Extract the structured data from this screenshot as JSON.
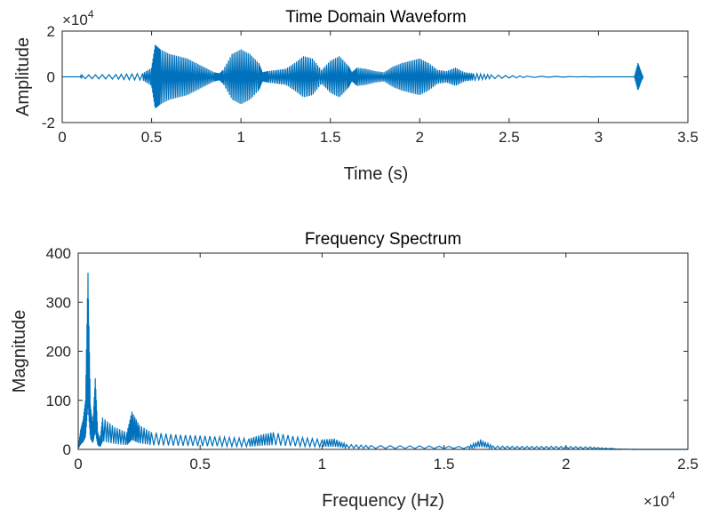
{
  "chart_data": [
    {
      "type": "line",
      "title": "Time Domain Waveform",
      "xlabel": "Time (s)",
      "ylabel": "Amplitude",
      "xlim": [
        0,
        3.5
      ],
      "ylim": [
        -20000,
        20000
      ],
      "xticks": [
        0,
        0.5,
        1,
        1.5,
        2,
        2.5,
        3,
        3.5
      ],
      "xtick_labels": [
        "0",
        "0.5",
        "1",
        "1.5",
        "2",
        "2.5",
        "3",
        "3.5"
      ],
      "yticks": [
        -20000,
        0,
        20000
      ],
      "ytick_labels": [
        "-2",
        "0",
        "2"
      ],
      "y_multiplier": "×10",
      "y_multiplier_exp": "4",
      "line_color": "#0072bd",
      "grid": false,
      "series": [
        {
          "x": [
            0,
            0.1,
            0.11,
            0.3,
            0.45,
            0.5,
            0.52,
            0.55,
            0.6,
            0.65,
            0.7,
            0.75,
            0.8,
            0.85,
            0.88,
            0.9,
            0.95,
            1.0,
            1.05,
            1.1,
            1.12,
            1.15,
            1.2,
            1.25,
            1.3,
            1.35,
            1.4,
            1.45,
            1.5,
            1.55,
            1.6,
            1.62,
            1.65,
            1.7,
            1.75,
            1.8,
            1.85,
            1.9,
            1.95,
            2.0,
            2.05,
            2.1,
            2.15,
            2.2,
            2.25,
            2.3,
            2.4,
            2.6,
            3.0,
            3.2,
            3.22,
            3.23,
            3.25
          ],
          "y": [
            0,
            0,
            800,
            1000,
            1500,
            4000,
            14000,
            12000,
            10000,
            9000,
            8000,
            6000,
            4000,
            2000,
            1500,
            3000,
            10000,
            12000,
            10000,
            6000,
            2000,
            2500,
            3000,
            3500,
            6000,
            9000,
            8000,
            3000,
            7000,
            9000,
            5000,
            2000,
            4000,
            3500,
            2500,
            2000,
            4500,
            6000,
            7000,
            8000,
            6000,
            3000,
            2500,
            4000,
            2000,
            1500,
            800,
            300,
            0,
            0,
            6000,
            4000,
            0
          ]
        }
      ]
    },
    {
      "type": "line",
      "title": "Frequency Spectrum",
      "xlabel": "Frequency (Hz)",
      "ylabel": "Magnitude",
      "xlim": [
        0,
        25000
      ],
      "ylim": [
        0,
        400
      ],
      "xticks": [
        0,
        5000,
        10000,
        15000,
        20000,
        25000
      ],
      "xtick_labels": [
        "0",
        "0.5",
        "1",
        "1.5",
        "2",
        "2.5"
      ],
      "yticks": [
        0,
        100,
        200,
        300,
        400
      ],
      "ytick_labels": [
        "0",
        "100",
        "200",
        "300",
        "400"
      ],
      "x_multiplier": "×10",
      "x_multiplier_exp": "4",
      "line_color": "#0072bd",
      "grid": false,
      "series": [
        {
          "x": [
            0,
            100,
            200,
            300,
            400,
            500,
            600,
            700,
            800,
            900,
            1000,
            1500,
            2000,
            2200,
            2500,
            3000,
            4000,
            5000,
            6000,
            7000,
            7500,
            8000,
            9000,
            10000,
            10500,
            11000,
            12000,
            14000,
            16000,
            16500,
            17000,
            18000,
            19000,
            20000,
            21000,
            21800,
            22000,
            23000,
            25000
          ],
          "y": [
            5,
            40,
            60,
            100,
            360,
            90,
            50,
            145,
            35,
            20,
            65,
            45,
            35,
            77,
            50,
            35,
            30,
            28,
            25,
            22,
            30,
            35,
            25,
            20,
            22,
            10,
            8,
            7,
            6,
            20,
            7,
            6,
            6,
            6,
            5,
            2,
            1,
            0,
            0
          ]
        }
      ]
    }
  ]
}
